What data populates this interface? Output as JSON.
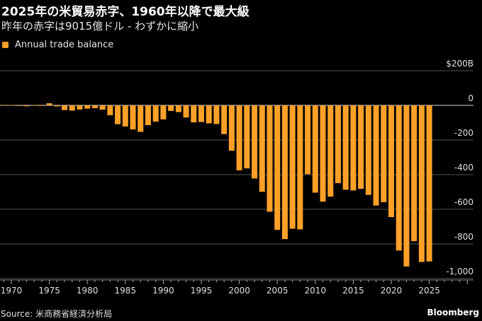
{
  "header": {
    "title": "2025年の米貿易赤字、1960年以降で最大級",
    "subtitle": "昨年の赤字は9015億ドル - わずかに縮小"
  },
  "legend": {
    "label": "Annual trade balance",
    "color": "#ffa028"
  },
  "footer": {
    "source": "Source: 米商務省経済分析局",
    "brand": "Bloomberg"
  },
  "chart_data": {
    "type": "bar",
    "title": "2025年の米貿易赤字、1960年以降で最大級",
    "subtitle": "昨年の赤字は9015億ドル - わずかに縮小",
    "xlabel": "",
    "ylabel": "",
    "series": [
      {
        "name": "Annual trade balance",
        "color": "#ffa028"
      }
    ],
    "x": [
      1968,
      1969,
      1970,
      1971,
      1972,
      1973,
      1974,
      1975,
      1976,
      1977,
      1978,
      1979,
      1980,
      1981,
      1982,
      1983,
      1984,
      1985,
      1986,
      1987,
      1988,
      1989,
      1990,
      1991,
      1992,
      1993,
      1994,
      1995,
      1996,
      1997,
      1998,
      1999,
      2000,
      2001,
      2002,
      2003,
      2004,
      2005,
      2006,
      2007,
      2008,
      2009,
      2010,
      2011,
      2012,
      2013,
      2014,
      2015,
      2016,
      2017,
      2018,
      2019,
      2020,
      2021,
      2022,
      2023,
      2024,
      2025
    ],
    "values": [
      1,
      1,
      2,
      -1,
      -5,
      1,
      -2,
      12,
      -6,
      -27,
      -30,
      -24,
      -19,
      -16,
      -25,
      -57,
      -109,
      -122,
      -139,
      -153,
      -114,
      -94,
      -81,
      -32,
      -39,
      -70,
      -98,
      -96,
      -104,
      -108,
      -166,
      -262,
      -375,
      -364,
      -422,
      -499,
      -614,
      -719,
      -772,
      -712,
      -716,
      -397,
      -504,
      -556,
      -527,
      -449,
      -487,
      -491,
      -482,
      -517,
      -578,
      -559,
      -645,
      -838,
      -930,
      -784,
      -904,
      -901
    ],
    "ylim": [
      -1000,
      200
    ],
    "yticks": [
      200,
      0,
      -200,
      -400,
      -600,
      -800,
      -1000
    ],
    "ytick_labels": [
      "$200B",
      "0",
      "-200",
      "-400",
      "-600",
      "-800",
      "-1,000"
    ],
    "xticks": [
      1970,
      1975,
      1980,
      1985,
      1990,
      1995,
      2000,
      2005,
      2010,
      2015,
      2020,
      2025
    ],
    "xtick_labels": [
      "1970",
      "1975",
      "1980",
      "1985",
      "1990",
      "1995",
      "2000",
      "2005",
      "2010",
      "2015",
      "2020",
      "2025"
    ],
    "grid": true,
    "legend_position": "top-left"
  }
}
